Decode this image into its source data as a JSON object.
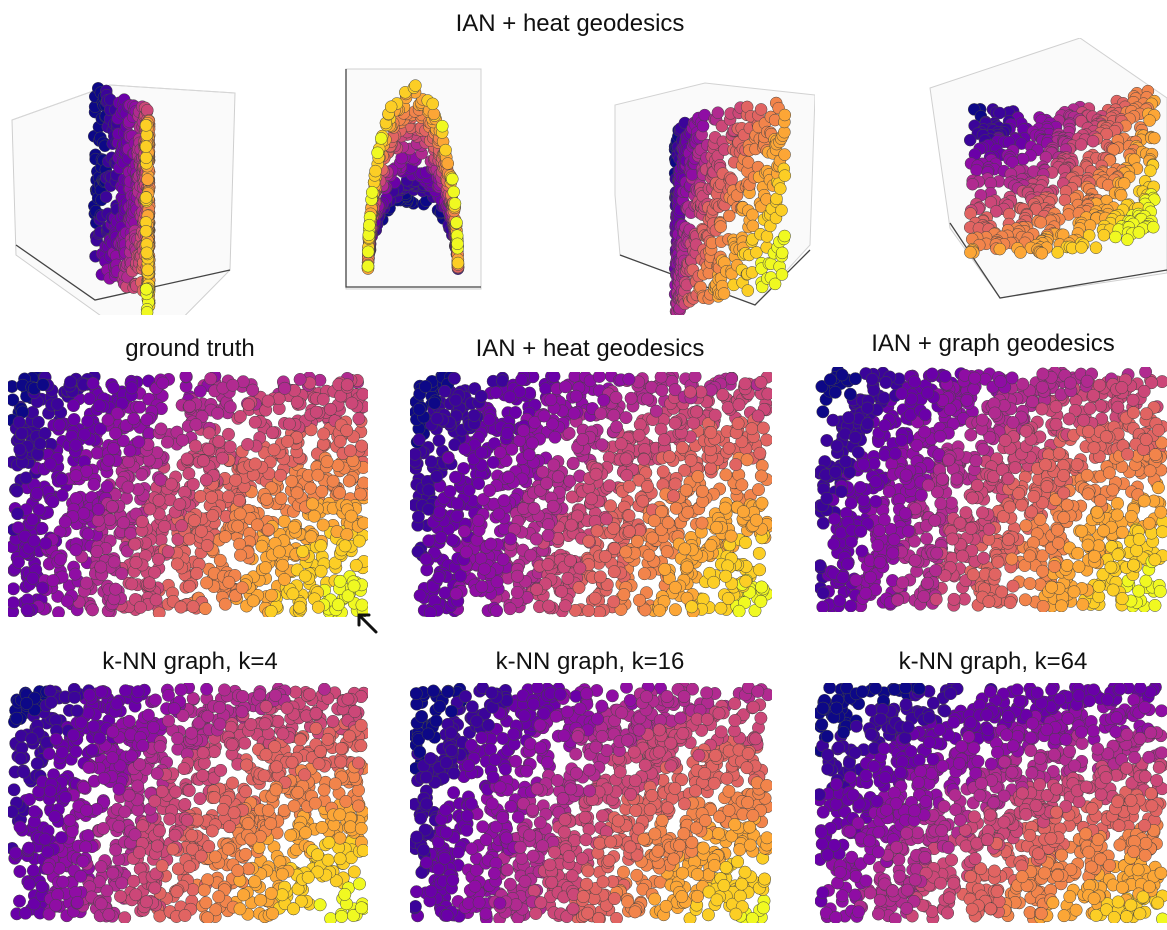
{
  "top": {
    "title": "IAN + heat geodesics"
  },
  "panels": [
    {
      "title": "ground truth"
    },
    {
      "title": "IAN + heat geodesics"
    },
    {
      "title": "IAN + graph geodesics"
    },
    {
      "title": "k-NN graph, k=4"
    },
    {
      "title": "k-NN graph, k=16"
    },
    {
      "title": "k-NN graph, k=64"
    }
  ],
  "colormap": [
    "#0d0887",
    "#3b049a",
    "#6a00a8",
    "#8f0da4",
    "#b12a90",
    "#cc4778",
    "#e16462",
    "#f2844b",
    "#fca636",
    "#fcce25",
    "#f0f921"
  ],
  "point_edge_color": "#444444",
  "annotation_icon": "arrow-up-left-icon"
}
